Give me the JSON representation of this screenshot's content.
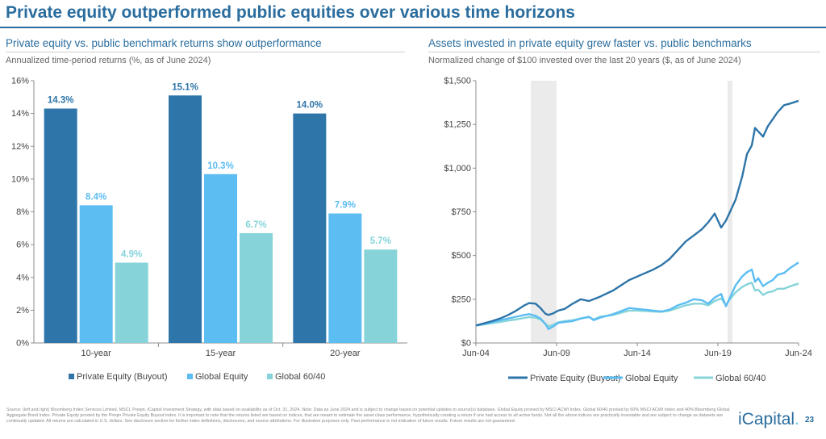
{
  "title": "Private equity outperformed public equities over various time horizons",
  "colors": {
    "private_equity": "#2e75a9",
    "global_equity": "#5cbdf2",
    "global_6040": "#86d4d9",
    "brand": "#2a6d9e"
  },
  "chart_data": [
    {
      "type": "bar",
      "title": "Private equity vs. public benchmark returns show outperformance",
      "subtitle": "Annualized time-period returns (%, as of June 2024)",
      "categories": [
        "10-year",
        "15-year",
        "20-year"
      ],
      "series": [
        {
          "name": "Private Equity (Buyout)",
          "values": [
            14.3,
            15.1,
            14.0
          ],
          "labels": [
            "14.3%",
            "15.1%",
            "14.0%"
          ]
        },
        {
          "name": "Global Equity",
          "values": [
            8.4,
            10.3,
            7.9
          ],
          "labels": [
            "8.4%",
            "10.3%",
            "7.9%"
          ]
        },
        {
          "name": "Global 60/40",
          "values": [
            4.9,
            6.7,
            5.7
          ],
          "labels": [
            "4.9%",
            "6.7%",
            "5.7%"
          ]
        }
      ],
      "ylim": [
        0,
        16
      ],
      "yticks": [
        0,
        2,
        4,
        6,
        8,
        10,
        12,
        14,
        16
      ],
      "ytick_labels": [
        "0%",
        "2%",
        "4%",
        "6%",
        "8%",
        "10%",
        "12%",
        "14%",
        "16%"
      ],
      "legend": "bottom",
      "grid": false
    },
    {
      "type": "line",
      "title": "Assets invested in private equity grew faster vs. public benchmarks",
      "subtitle": "Normalized change of $100 invested over the last 20 years ($, as of June 2024)",
      "x": [
        2004.5,
        2005.0,
        2005.5,
        2006.0,
        2006.5,
        2007.0,
        2007.5,
        2007.8,
        2008.2,
        2008.5,
        2008.8,
        2009.0,
        2009.3,
        2009.6,
        2010.0,
        2010.5,
        2011.0,
        2011.5,
        2011.8,
        2012.2,
        2013.0,
        2014.0,
        2014.5,
        2015.0,
        2015.5,
        2016.0,
        2016.5,
        2017.0,
        2017.5,
        2018.0,
        2018.5,
        2018.9,
        2019.3,
        2019.7,
        2020.0,
        2020.2,
        2020.6,
        2021.0,
        2021.3,
        2021.6,
        2021.8,
        2022.0,
        2022.3,
        2022.6,
        2022.9,
        2023.2,
        2023.6,
        2024.0,
        2024.5
      ],
      "series": [
        {
          "name": "Private Equity (Buyout)",
          "values": [
            100,
            112,
            125,
            140,
            160,
            185,
            215,
            228,
            225,
            200,
            168,
            160,
            170,
            185,
            195,
            225,
            250,
            240,
            250,
            265,
            300,
            360,
            380,
            400,
            420,
            445,
            480,
            530,
            580,
            615,
            650,
            690,
            740,
            660,
            700,
            740,
            820,
            950,
            1080,
            1130,
            1230,
            1210,
            1180,
            1240,
            1280,
            1320,
            1360,
            1370,
            1385
          ]
        },
        {
          "name": "Global Equity",
          "values": [
            100,
            108,
            118,
            130,
            140,
            150,
            160,
            165,
            155,
            140,
            110,
            80,
            95,
            115,
            120,
            125,
            140,
            150,
            130,
            145,
            165,
            200,
            195,
            190,
            185,
            180,
            190,
            215,
            230,
            250,
            245,
            225,
            260,
            280,
            210,
            250,
            330,
            380,
            405,
            420,
            350,
            370,
            325,
            345,
            360,
            390,
            400,
            430,
            460
          ]
        },
        {
          "name": "Global 60/40",
          "values": [
            100,
            106,
            113,
            120,
            128,
            135,
            143,
            148,
            145,
            135,
            110,
            95,
            105,
            118,
            125,
            130,
            140,
            148,
            135,
            150,
            160,
            185,
            185,
            183,
            180,
            178,
            185,
            200,
            215,
            225,
            225,
            215,
            240,
            255,
            215,
            245,
            290,
            320,
            335,
            345,
            300,
            305,
            275,
            290,
            295,
            310,
            310,
            325,
            340
          ]
        }
      ],
      "xticks": [
        2004.5,
        2009.5,
        2014.5,
        2019.5,
        2024.5
      ],
      "xtick_labels": [
        "Jun-04",
        "Jun-09",
        "Jun-14",
        "Jun-19",
        "Jun-24"
      ],
      "xlim": [
        2004.5,
        2024.5
      ],
      "ylim": [
        0,
        1500
      ],
      "yticks": [
        0,
        250,
        500,
        750,
        1000,
        1250,
        1500
      ],
      "ytick_labels": [
        "$0",
        "$250",
        "$500",
        "$750",
        "$1,000",
        "$1,250",
        "$1,500"
      ],
      "recession_shading": [
        [
          2007.9,
          2009.5
        ],
        [
          2020.1,
          2020.4
        ]
      ],
      "legend": "bottom",
      "grid": false
    }
  ],
  "footer": {
    "source": "Source: (left and right) Bloomberg Index Services Limited, MSCI, Preqin, iCapital Investment Strategy, with data based on availability as of Oct. 31, 2024. Note: Data as June 2024 and is subject to change based on potential updates to source(s) database. Global Equity proxied by MSCI ACWI Index. Global 60/40 proxied by 60% MSCI ACWI Index and 40% Bloomberg Global Aggregate Bond Index. Private Equity proxied by the Preqin Private Equity Buyout Index. It is important to note that the returns listed are based on indices, that are meant to estimate the asset class performance, hypothetically creating a return if one had access to all active funds. Not all the above indices are practically investable and are subject to change as datasets are continually updated. All returns are calculated in U.S. dollars. See disclosure section for further index definitions, disclosures, and source attributions. For illustrative purposes only. Past performance is not indicative of future results. Future results are not guaranteed."
  },
  "logo": {
    "text": "iCapital",
    "dot": "."
  },
  "page_number": "23"
}
